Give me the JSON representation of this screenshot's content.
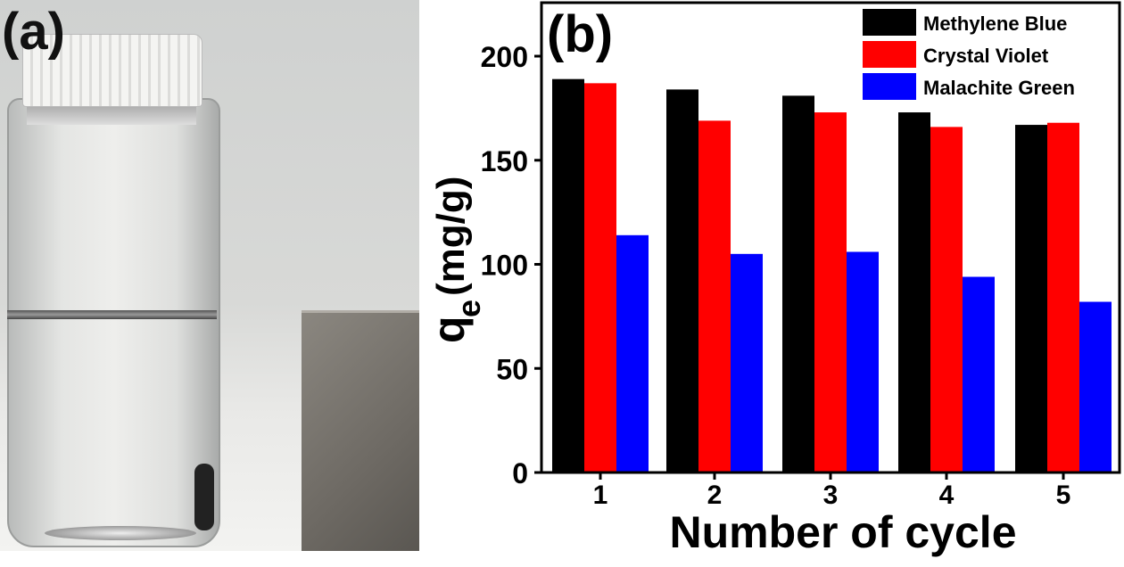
{
  "panel_a": {
    "label": "(a)"
  },
  "panel_b": {
    "label": "(b)"
  },
  "chart_data": {
    "type": "bar",
    "title": "",
    "xlabel": "Number of cycle",
    "ylabel_main": "q",
    "ylabel_sub": "e",
    "ylabel_unit": "(mg/g)",
    "categories": [
      "1",
      "2",
      "3",
      "4",
      "5"
    ],
    "ylim": [
      0,
      220
    ],
    "yticks": [
      "0",
      "50",
      "100",
      "150",
      "200"
    ],
    "ytick_values": [
      0,
      50,
      100,
      150,
      200
    ],
    "legend_position": "top-right",
    "series": [
      {
        "name": "Methylene Blue",
        "color": "#000000",
        "values": [
          189,
          184,
          181,
          173,
          167
        ]
      },
      {
        "name": "Crystal Violet",
        "color": "#ff0000",
        "values": [
          187,
          169,
          173,
          166,
          168
        ]
      },
      {
        "name": "Malachite Green",
        "color": "#0000ff",
        "values": [
          114,
          105,
          106,
          94,
          82
        ]
      }
    ]
  }
}
